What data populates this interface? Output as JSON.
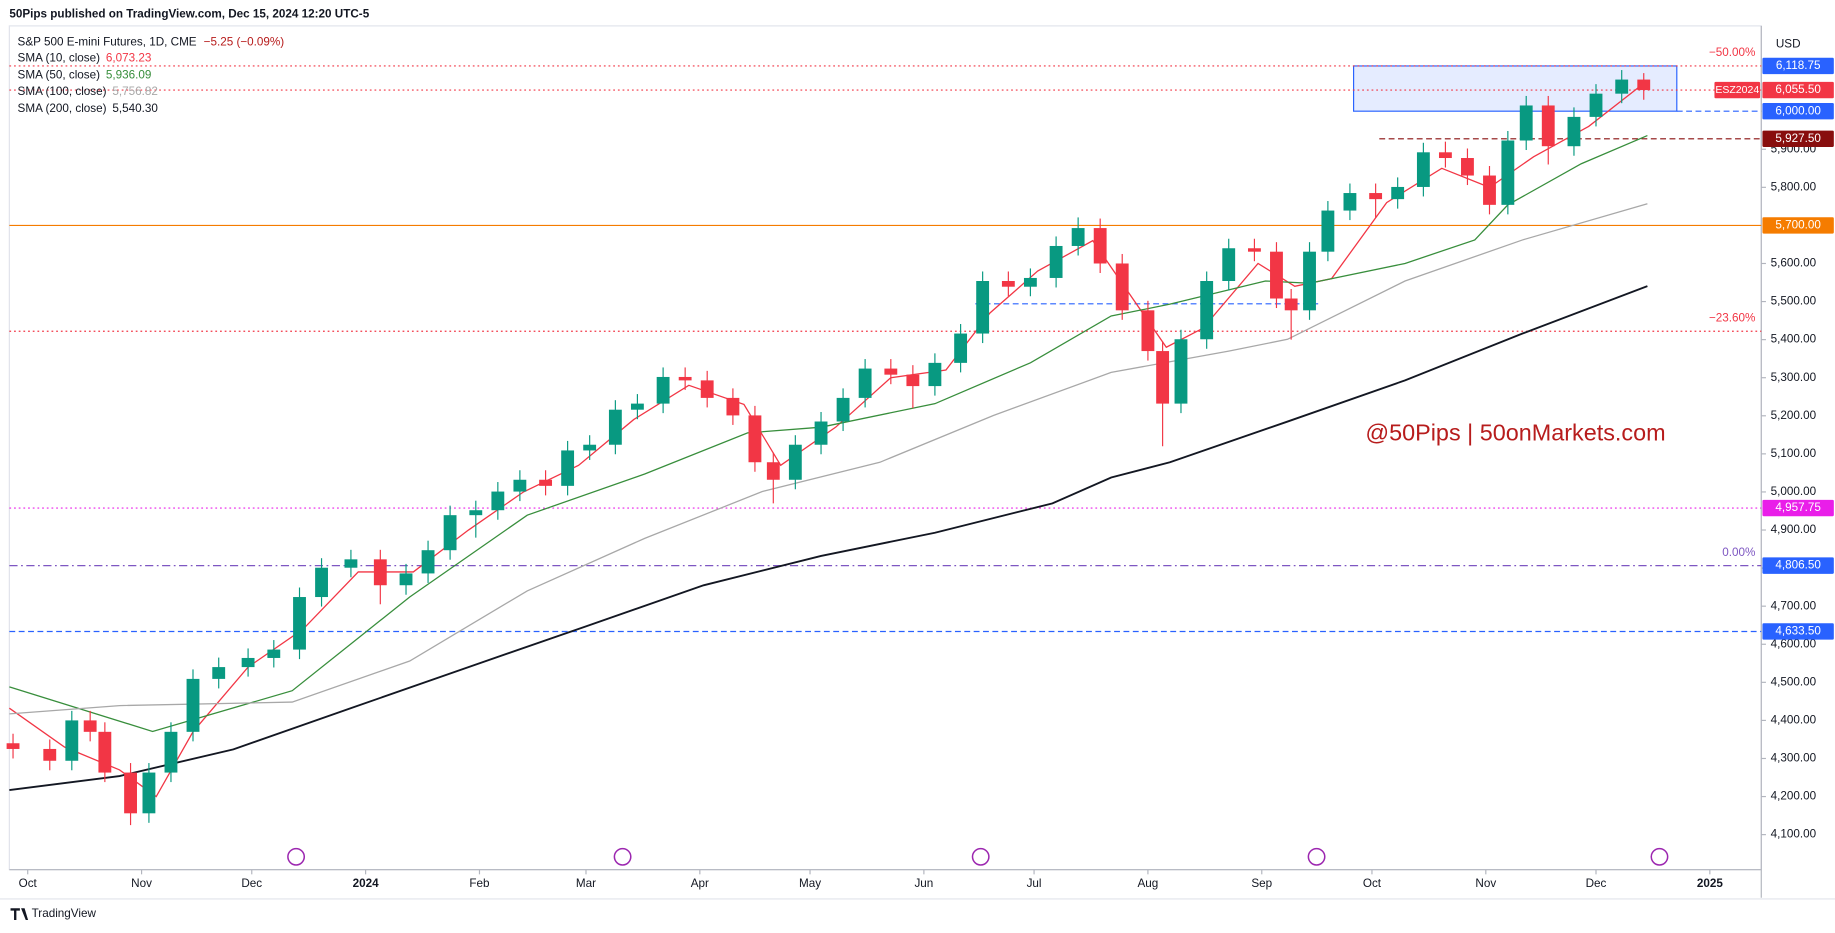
{
  "header": {
    "text": "50Pips published on TradingView.com, Dec 15, 2024 12:20 UTC-5"
  },
  "footer": {
    "brand": "TradingView"
  },
  "watermark": "@50Pips | 50onMarkets.com",
  "chart_data": {
    "type": "candlestick",
    "title": "S&P 500 E-mini Futures, 1D, CME",
    "change": "−5.25 (−0.09%)",
    "currency": "USD",
    "up_color": "#089981",
    "down_color": "#f23645",
    "xlim": [
      -5,
      472
    ],
    "ylim": [
      4008,
      6224
    ],
    "xticks": [
      {
        "value": 0,
        "label": "Oct"
      },
      {
        "value": 31,
        "label": "Nov"
      },
      {
        "value": 61,
        "label": "Dec"
      },
      {
        "value": 92,
        "label": "2024"
      },
      {
        "value": 123,
        "label": "Feb"
      },
      {
        "value": 152,
        "label": "Mar"
      },
      {
        "value": 183,
        "label": "Apr"
      },
      {
        "value": 213,
        "label": "May"
      },
      {
        "value": 244,
        "label": "Jun"
      },
      {
        "value": 274,
        "label": "Jul"
      },
      {
        "value": 305,
        "label": "Aug"
      },
      {
        "value": 336,
        "label": "Sep"
      },
      {
        "value": 366,
        "label": "Oct"
      },
      {
        "value": 397,
        "label": "Nov"
      },
      {
        "value": 427,
        "label": "Dec"
      },
      {
        "value": 458,
        "label": "2025"
      }
    ],
    "yticks": [
      {
        "value": 4100,
        "label": "4,100.00"
      },
      {
        "value": 4200,
        "label": "4,200.00"
      },
      {
        "value": 4300,
        "label": "4,300.00"
      },
      {
        "value": 4400,
        "label": "4,400.00"
      },
      {
        "value": 4500,
        "label": "4,500.00"
      },
      {
        "value": 4600,
        "label": "4,600.00"
      },
      {
        "value": 4700,
        "label": "4,700.00"
      },
      {
        "value": 4800,
        "label": "4,800.00"
      },
      {
        "value": 4900,
        "label": "4,900.00"
      },
      {
        "value": 5000,
        "label": "5,000.00"
      },
      {
        "value": 5100,
        "label": "5,100.00"
      },
      {
        "value": 5200,
        "label": "5,200.00"
      },
      {
        "value": 5300,
        "label": "5,300.00"
      },
      {
        "value": 5400,
        "label": "5,400.00"
      },
      {
        "value": 5500,
        "label": "5,500.00"
      },
      {
        "value": 5600,
        "label": "5,600.00"
      },
      {
        "value": 5800,
        "label": "5,800.00"
      },
      {
        "value": 5900,
        "label": "5,900.00"
      }
    ],
    "x": [
      -4,
      6,
      12,
      17,
      21,
      28,
      33,
      39,
      45,
      52,
      60,
      67,
      74,
      80,
      88,
      96,
      103,
      109,
      115,
      122,
      128,
      134,
      141,
      147,
      153,
      160,
      166,
      173,
      179,
      185,
      192,
      198,
      203,
      209,
      216,
      222,
      228,
      235,
      241,
      247,
      254,
      260,
      267,
      273,
      280,
      286,
      292,
      298,
      305,
      309,
      314,
      321,
      327,
      334,
      340,
      344,
      349,
      354,
      360,
      367,
      373,
      380,
      386,
      392,
      398,
      403,
      408,
      414,
      421,
      427,
      434,
      440
    ],
    "open": [
      4340,
      4325,
      4294,
      4400,
      4370,
      4263,
      4156,
      4263,
      4370,
      4509,
      4540,
      4564,
      4586,
      4724,
      4801,
      4823,
      4755,
      4786,
      4847,
      4939,
      4952,
      5001,
      5032,
      5016,
      5109,
      5124,
      5216,
      5232,
      5302,
      5293,
      5247,
      5201,
      5078,
      5032,
      5124,
      5185,
      5247,
      5324,
      5308,
      5278,
      5339,
      5416,
      5554,
      5539,
      5562,
      5646,
      5693,
      5600,
      5477,
      5370,
      5232,
      5401,
      5554,
      5640,
      5631,
      5508,
      5477,
      5631,
      5739,
      5785,
      5769,
      5801,
      5892,
      5877,
      5831,
      5754,
      5923,
      6015,
      5908,
      5985,
      6046,
      6083
    ],
    "high": [
      4365,
      4350,
      4425,
      4425,
      4395,
      4288,
      4288,
      4395,
      4534,
      4565,
      4589,
      4611,
      4749,
      4826,
      4848,
      4848,
      4811,
      4872,
      4964,
      4977,
      5026,
      5057,
      5057,
      5134,
      5149,
      5241,
      5257,
      5327,
      5327,
      5318,
      5272,
      5226,
      5103,
      5149,
      5210,
      5272,
      5349,
      5349,
      5333,
      5364,
      5441,
      5579,
      5579,
      5587,
      5671,
      5721,
      5718,
      5625,
      5502,
      5395,
      5426,
      5579,
      5665,
      5665,
      5656,
      5533,
      5656,
      5764,
      5810,
      5810,
      5826,
      5917,
      5920,
      5902,
      5856,
      5948,
      6040,
      6040,
      6010,
      6071,
      6108,
      6100
    ],
    "low": [
      4300,
      4269,
      4269,
      4345,
      4238,
      4125,
      4131,
      4238,
      4345,
      4484,
      4515,
      4539,
      4561,
      4699,
      4776,
      4705,
      4730,
      4761,
      4822,
      4880,
      4927,
      4976,
      4991,
      4991,
      5084,
      5099,
      5191,
      5207,
      5268,
      5222,
      5176,
      5053,
      4970,
      5007,
      5099,
      5160,
      5222,
      5283,
      5220,
      5253,
      5314,
      5391,
      5514,
      5514,
      5537,
      5621,
      5575,
      5452,
      5345,
      5120,
      5207,
      5376,
      5529,
      5606,
      5483,
      5400,
      5452,
      5606,
      5714,
      5720,
      5744,
      5776,
      5852,
      5806,
      5729,
      5729,
      5898,
      5860,
      5883,
      5960,
      6021,
      6030
    ],
    "close": [
      4325,
      4294,
      4400,
      4370,
      4263,
      4156,
      4263,
      4370,
      4509,
      4540,
      4564,
      4586,
      4724,
      4801,
      4823,
      4755,
      4786,
      4847,
      4939,
      4952,
      5001,
      5032,
      5016,
      5109,
      5124,
      5216,
      5232,
      5302,
      5293,
      5247,
      5201,
      5078,
      5032,
      5124,
      5185,
      5247,
      5324,
      5308,
      5278,
      5339,
      5416,
      5554,
      5539,
      5562,
      5646,
      5693,
      5600,
      5477,
      5370,
      5232,
      5401,
      5554,
      5640,
      5631,
      5508,
      5477,
      5631,
      5739,
      5785,
      5769,
      5801,
      5892,
      5877,
      5831,
      5754,
      5923,
      6015,
      5908,
      5985,
      6046,
      6083,
      6055.5
    ],
    "sma": [
      {
        "name": "SMA (10, close)",
        "color": "#f23645",
        "last_label": "6,073.23",
        "x": [
          -5,
          10,
          25,
          35,
          45,
          60,
          75,
          90,
          105,
          120,
          135,
          150,
          165,
          180,
          195,
          205,
          220,
          235,
          250,
          262,
          275,
          290,
          300,
          310,
          320,
          335,
          345,
          355,
          370,
          385,
          398,
          410,
          425,
          440
        ],
        "values": [
          4432,
          4330,
          4270,
          4200,
          4370,
          4540,
          4640,
          4790,
          4790,
          4900,
          5000,
          5070,
          5190,
          5280,
          5230,
          5070,
          5170,
          5300,
          5320,
          5470,
          5580,
          5660,
          5520,
          5380,
          5430,
          5600,
          5540,
          5560,
          5760,
          5850,
          5800,
          5880,
          5960,
          6073.23
        ]
      },
      {
        "name": "SMA (50, close)",
        "color": "#388e3c",
        "last_label": "5,936.09",
        "x": [
          -5,
          34,
          72,
          104,
          136,
          168,
          196,
          216,
          247,
          273,
          295,
          311,
          337,
          349,
          375,
          394,
          403,
          423,
          441
        ],
        "values": [
          4488,
          4371,
          4478,
          4724,
          4939,
          5047,
          5155,
          5170,
          5232,
          5339,
          5462,
          5493,
          5554,
          5548,
          5600,
          5662,
          5754,
          5862,
          5936.09
        ]
      },
      {
        "name": "SMA (100, close)",
        "color": "#a8a8a8",
        "last_label": "5,756.82",
        "x": [
          -5,
          25,
          72,
          104,
          136,
          168,
          200,
          232,
          263,
          295,
          327,
          343,
          375,
          407,
          441
        ],
        "values": [
          4417,
          4439,
          4448,
          4556,
          4740,
          4878,
          5001,
          5078,
          5201,
          5314,
          5370,
          5401,
          5554,
          5662,
          5756.82
        ]
      },
      {
        "name": "SMA (200, close)",
        "color": "#131722",
        "last_label": "5,540.30",
        "x": [
          -5,
          25,
          56,
          88,
          120,
          152,
          184,
          216,
          247,
          279,
          295,
          311,
          343,
          375,
          407,
          441
        ],
        "values": [
          4217,
          4254,
          4324,
          4432,
          4540,
          4647,
          4755,
          4832,
          4893,
          4970,
          5038,
          5078,
          5185,
          5293,
          5416,
          5540.3
        ]
      }
    ],
    "zone": {
      "x": [
        361,
        449
      ],
      "y": [
        6000,
        6118.75
      ],
      "color": "#2962ff"
    },
    "levels": [
      {
        "value": 6118.75,
        "label": "6,118.75",
        "color": "#f23645",
        "label_color": "#2962ff",
        "style": "dotted",
        "fib": "−50.00%"
      },
      {
        "value": 6055.5,
        "label": "6,055.50",
        "tag": "ESZ2024",
        "color": "#f23645",
        "style": "dotted"
      },
      {
        "value": 6000,
        "label": "6,000.00",
        "color": "#2962ff",
        "style": "dashed",
        "from": 449
      },
      {
        "value": 5927.5,
        "label": "5,927.50",
        "color": "#880e0e",
        "style": "dashed",
        "from": 368
      },
      {
        "value": 5700,
        "label": "5,700.00",
        "color": "#f57c00",
        "style": "solid"
      },
      {
        "value": 5494,
        "color": "#2962ff",
        "style": "dashed",
        "from": 258,
        "to": 352
      },
      {
        "value": 5422,
        "color": "#f23645",
        "style": "dotted",
        "fib": "−23.60%"
      },
      {
        "value": 4957.75,
        "label": "4,957.75",
        "color": "#e91ee9",
        "style": "dotted"
      },
      {
        "value": 4806.5,
        "label": "4,806.50",
        "color": "#7e57c2",
        "label_color": "#2962ff",
        "style": "dashdot",
        "fib": "0.00%"
      },
      {
        "value": 4633.5,
        "label": "4,633.50",
        "color": "#2962ff",
        "style": "dashed"
      }
    ]
  }
}
